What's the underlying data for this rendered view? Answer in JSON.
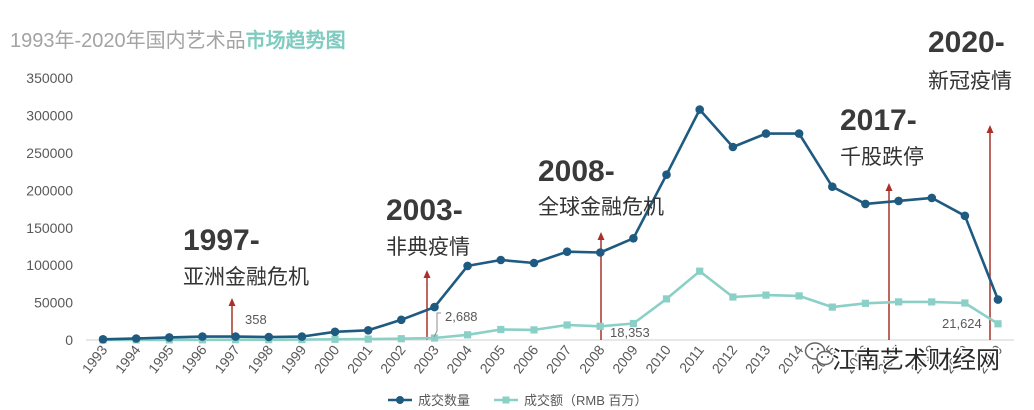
{
  "chart_data": {
    "type": "line",
    "title_parts": [
      "1993年-2020年国内艺术品",
      "市场趋势图"
    ],
    "x": [
      "1993",
      "1994",
      "1995",
      "1996",
      "1997",
      "1998",
      "1999",
      "2000",
      "2001",
      "2002",
      "2003",
      "2004",
      "2005",
      "2006",
      "2007",
      "2008",
      "2009",
      "2010",
      "2011",
      "2012",
      "2013",
      "2014",
      "2015",
      "2016",
      "2017",
      "2018",
      "2019",
      "2020"
    ],
    "ylim": [
      0,
      350000
    ],
    "yticks": [
      0,
      50000,
      100000,
      150000,
      200000,
      250000,
      300000,
      350000
    ],
    "grid": false,
    "legend": {
      "position": "bottom"
    },
    "series": [
      {
        "name": "成交数量",
        "color": "#1f5a80",
        "marker": "circle",
        "values": [
          1000,
          2000,
          3500,
          4500,
          4500,
          4000,
          4500,
          11000,
          13000,
          27000,
          44000,
          99000,
          107000,
          103000,
          118000,
          117000,
          136000,
          221000,
          308000,
          258000,
          276000,
          276000,
          205000,
          182000,
          186000,
          190000,
          166000,
          54000
        ]
      },
      {
        "name": "成交额（RMB 百万）",
        "color": "#8bd0c6",
        "marker": "square",
        "values": [
          100,
          200,
          150,
          250,
          358,
          400,
          500,
          900,
          1200,
          1800,
          2688,
          7000,
          14000,
          13500,
          20000,
          18353,
          22000,
          55000,
          92000,
          57500,
          60000,
          59000,
          44000,
          49000,
          51000,
          51000,
          49500,
          21624
        ]
      }
    ],
    "data_labels": [
      {
        "x": 1997,
        "series": 1,
        "text": "358"
      },
      {
        "x": 2003,
        "series": 1,
        "text": "2,688"
      },
      {
        "x": 2008,
        "series": 1,
        "text": "18,353"
      },
      {
        "x": 2020,
        "series": 1,
        "text": "21,624"
      }
    ],
    "annotations": [
      {
        "x": 1997,
        "year": "1997-",
        "event": "亚洲金融危机"
      },
      {
        "x": 2003,
        "year": "2003-",
        "event": "非典疫情"
      },
      {
        "x": 2008,
        "year": "2008-",
        "event": "全球金融危机"
      },
      {
        "x": 2017,
        "year": "2017-",
        "event": "千股跌停"
      },
      {
        "x": 2020,
        "year": "2020-",
        "event": "新冠疫情"
      }
    ]
  },
  "colors": {
    "title_grey": "#a3a3a3",
    "title_accent": "#7fcbc0",
    "arrow": "#a8322b"
  },
  "watermark": {
    "icon": "wechat-icon",
    "text": "江南艺术财经网"
  }
}
